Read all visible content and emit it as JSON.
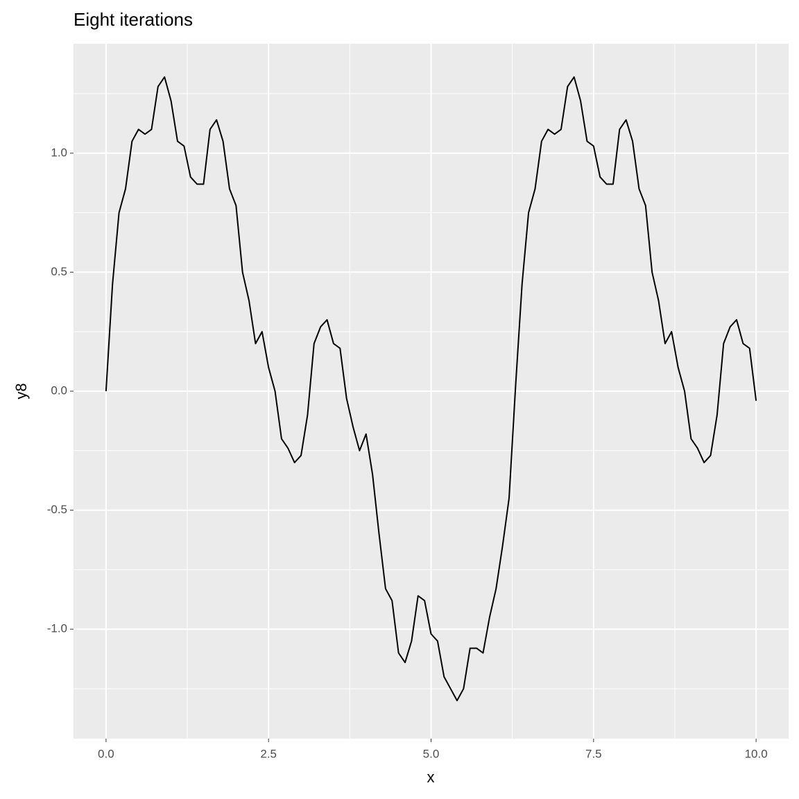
{
  "chart_data": {
    "type": "line",
    "title": "Eight iterations",
    "x_label": "x",
    "y_label": "y8",
    "x": [
      0,
      0.1,
      0.2,
      0.3,
      0.4,
      0.5,
      0.6,
      0.7,
      0.8,
      0.9,
      1.0,
      1.1,
      1.2,
      1.3,
      1.4,
      1.5,
      1.6,
      1.7,
      1.8,
      1.9,
      2.0,
      2.1,
      2.2,
      2.3,
      2.4,
      2.5,
      2.6,
      2.7,
      2.8,
      2.9,
      3.0,
      3.1,
      3.2,
      3.3,
      3.4,
      3.5,
      3.6,
      3.7,
      3.8,
      3.9,
      4.0,
      4.1,
      4.2,
      4.3,
      4.4,
      4.5,
      4.6,
      4.7,
      4.8,
      4.9,
      5.0,
      5.1,
      5.2,
      5.3,
      5.4,
      5.5,
      5.6,
      5.7,
      5.8,
      5.9,
      6.0,
      6.1,
      6.2,
      6.3,
      6.4,
      6.5,
      6.6,
      6.7,
      6.8,
      6.9,
      7.0,
      7.1,
      7.2,
      7.3,
      7.4,
      7.5,
      7.6,
      7.7,
      7.8,
      7.9,
      8.0,
      8.1,
      8.2,
      8.3,
      8.4,
      8.5,
      8.6,
      8.7,
      8.8,
      8.9,
      9.0,
      9.1,
      9.2,
      9.3,
      9.4,
      9.5,
      9.6,
      9.7,
      9.8,
      9.9,
      10.0
    ],
    "series": [
      {
        "name": "y8",
        "color": "#000000",
        "values": [
          0,
          0.45,
          0.75,
          0.85,
          1.05,
          1.1,
          1.08,
          1.1,
          1.28,
          1.32,
          1.22,
          1.05,
          1.03,
          0.9,
          0.87,
          0.87,
          1.1,
          1.14,
          1.05,
          0.85,
          0.78,
          0.5,
          0.38,
          0.2,
          0.25,
          0.1,
          0.0,
          -0.2,
          -0.24,
          -0.3,
          -0.27,
          -0.1,
          0.2,
          0.27,
          0.3,
          0.2,
          0.18,
          -0.03,
          -0.15,
          -0.25,
          -0.18,
          -0.35,
          -0.6,
          -0.83,
          -0.88,
          -1.1,
          -1.14,
          -1.05,
          -0.86,
          -0.88,
          -1.02,
          -1.05,
          -1.2,
          -1.25,
          -1.3,
          -1.25,
          -1.08,
          -1.08,
          -1.1,
          -0.95,
          -0.83,
          -0.65,
          -0.45,
          0.02,
          0.45,
          0.75,
          0.85,
          1.05,
          1.1,
          1.08,
          1.1,
          1.28,
          1.32,
          1.22,
          1.05,
          1.03,
          0.9,
          0.87,
          0.87,
          1.1,
          1.14,
          1.05,
          0.85,
          0.78,
          0.5,
          0.38,
          0.2,
          0.25,
          0.1,
          0.0,
          -0.2,
          -0.24,
          -0.3,
          -0.27,
          -0.1,
          0.2,
          0.27,
          0.3,
          0.2,
          0.18,
          -0.04
        ]
      }
    ],
    "xlim": [
      -0.5,
      10.5
    ],
    "ylim": [
      -1.46,
      1.46
    ],
    "xticks": [
      {
        "value": 0,
        "label": "0.0"
      },
      {
        "value": 2.5,
        "label": "2.5"
      },
      {
        "value": 5,
        "label": "5.0"
      },
      {
        "value": 7.5,
        "label": "7.5"
      },
      {
        "value": 10,
        "label": "10.0"
      }
    ],
    "yticks": [
      {
        "value": -1,
        "label": "-1.0"
      },
      {
        "value": -0.5,
        "label": "-0.5"
      },
      {
        "value": 0,
        "label": "0.0"
      },
      {
        "value": 0.5,
        "label": "0.5"
      },
      {
        "value": 1,
        "label": "1.0"
      }
    ],
    "grid": true
  }
}
